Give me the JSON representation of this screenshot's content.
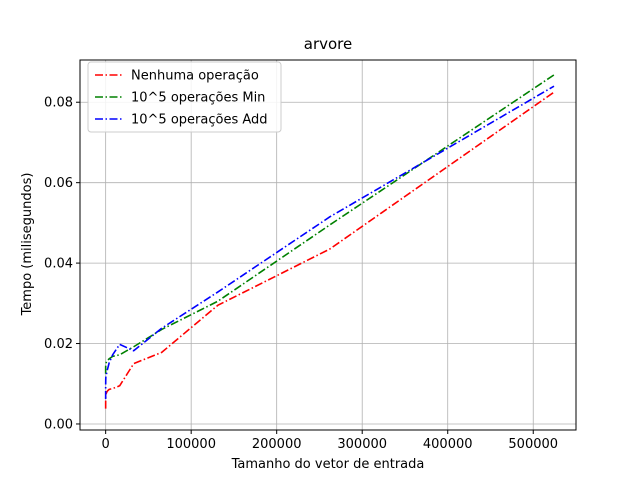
{
  "chart_data": {
    "type": "line",
    "title": "arvore",
    "xlabel": "Tamanho do vetor de entrada",
    "ylabel": "Tempo (milisegundos)",
    "xlim": [
      -30000,
      550000
    ],
    "ylim": [
      -0.0015,
      0.0905
    ],
    "xticks": [
      0,
      100000,
      200000,
      300000,
      400000,
      500000
    ],
    "xtick_labels": [
      "0",
      "100000",
      "200000",
      "300000",
      "400000",
      "500000"
    ],
    "yticks": [
      0.0,
      0.02,
      0.04,
      0.06,
      0.08
    ],
    "ytick_labels": [
      "0.00",
      "0.02",
      "0.04",
      "0.06",
      "0.08"
    ],
    "grid": true,
    "legend_position": "top-left",
    "series": [
      {
        "name": "Nenhuma operação",
        "color": "#ff0000",
        "linestyle": "dashdot",
        "x": [
          1,
          2,
          4,
          8,
          16,
          32,
          64,
          128,
          256,
          512,
          1024,
          2048,
          4096,
          8192,
          16384,
          32768,
          65536,
          131072,
          262144,
          524288
        ],
        "y": [
          0.0038,
          0.0042,
          0.0045,
          0.0048,
          0.0052,
          0.0058,
          0.0062,
          0.0066,
          0.007,
          0.0074,
          0.0078,
          0.0082,
          0.0086,
          0.0088,
          0.0095,
          0.015,
          0.0178,
          0.0295,
          0.0435,
          0.0825
        ]
      },
      {
        "name": "10^5 operações Min",
        "color": "#008000",
        "linestyle": "dashdot",
        "x": [
          1,
          2,
          4,
          8,
          16,
          32,
          64,
          128,
          256,
          512,
          1024,
          2048,
          4096,
          8192,
          16384,
          32768,
          65536,
          131072,
          262144,
          524288
        ],
        "y": [
          0.0125,
          0.013,
          0.0133,
          0.0136,
          0.014,
          0.0142,
          0.0144,
          0.0146,
          0.0148,
          0.0152,
          0.0155,
          0.0158,
          0.0162,
          0.0168,
          0.0172,
          0.0192,
          0.0235,
          0.0305,
          0.0495,
          0.0868
        ]
      },
      {
        "name": "10^5 operações Add",
        "color": "#0000ff",
        "linestyle": "dashdot",
        "x": [
          1,
          2,
          4,
          8,
          16,
          32,
          64,
          128,
          256,
          512,
          1024,
          2048,
          4096,
          8192,
          16384,
          32768,
          65536,
          131072,
          262144,
          524288
        ],
        "y": [
          0.0062,
          0.0068,
          0.0075,
          0.0082,
          0.009,
          0.0098,
          0.0105,
          0.0112,
          0.0118,
          0.0122,
          0.0125,
          0.0135,
          0.0152,
          0.0172,
          0.0198,
          0.0182,
          0.0238,
          0.0328,
          0.0515,
          0.084
        ]
      }
    ]
  }
}
